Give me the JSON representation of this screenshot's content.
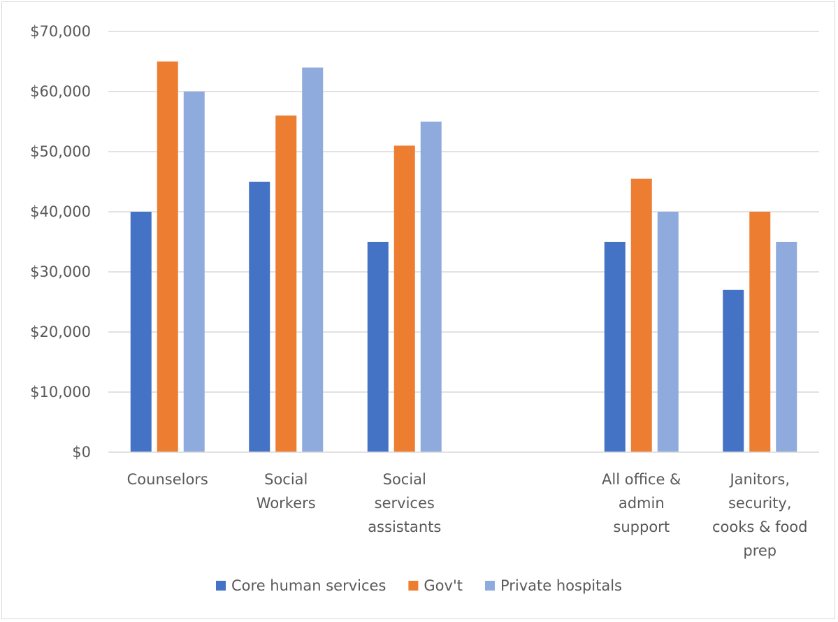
{
  "chart_data": {
    "type": "bar",
    "title": "",
    "xlabel": "",
    "ylabel": "",
    "ylim": [
      0,
      70000
    ],
    "y_ticks": [
      "$0",
      "$10,000",
      "$20,000",
      "$30,000",
      "$40,000",
      "$50,000",
      "$60,000",
      "$70,000"
    ],
    "grid": true,
    "legend_position": "bottom",
    "categories": [
      "Counselors",
      "Social Workers",
      "Social services assistants",
      "",
      "All office & admin support",
      "Janitors, security, cooks & food prep"
    ],
    "category_label_lines": [
      [
        "Counselors"
      ],
      [
        "Social",
        "Workers"
      ],
      [
        "Social",
        "services",
        "assistants"
      ],
      [],
      [
        "All office &",
        "admin",
        "support"
      ],
      [
        "Janitors,",
        "security,",
        "cooks & food",
        "prep"
      ]
    ],
    "series": [
      {
        "name": "Core human services",
        "color": "#4472c4",
        "values": [
          40000,
          45000,
          35000,
          null,
          35000,
          27000
        ]
      },
      {
        "name": "Gov't",
        "color": "#ed7d31",
        "values": [
          65000,
          56000,
          51000,
          null,
          45500,
          40000
        ]
      },
      {
        "name": "Private hospitals",
        "color": "#8faadc",
        "values": [
          60000,
          64000,
          55000,
          null,
          40000,
          35000
        ]
      }
    ]
  }
}
